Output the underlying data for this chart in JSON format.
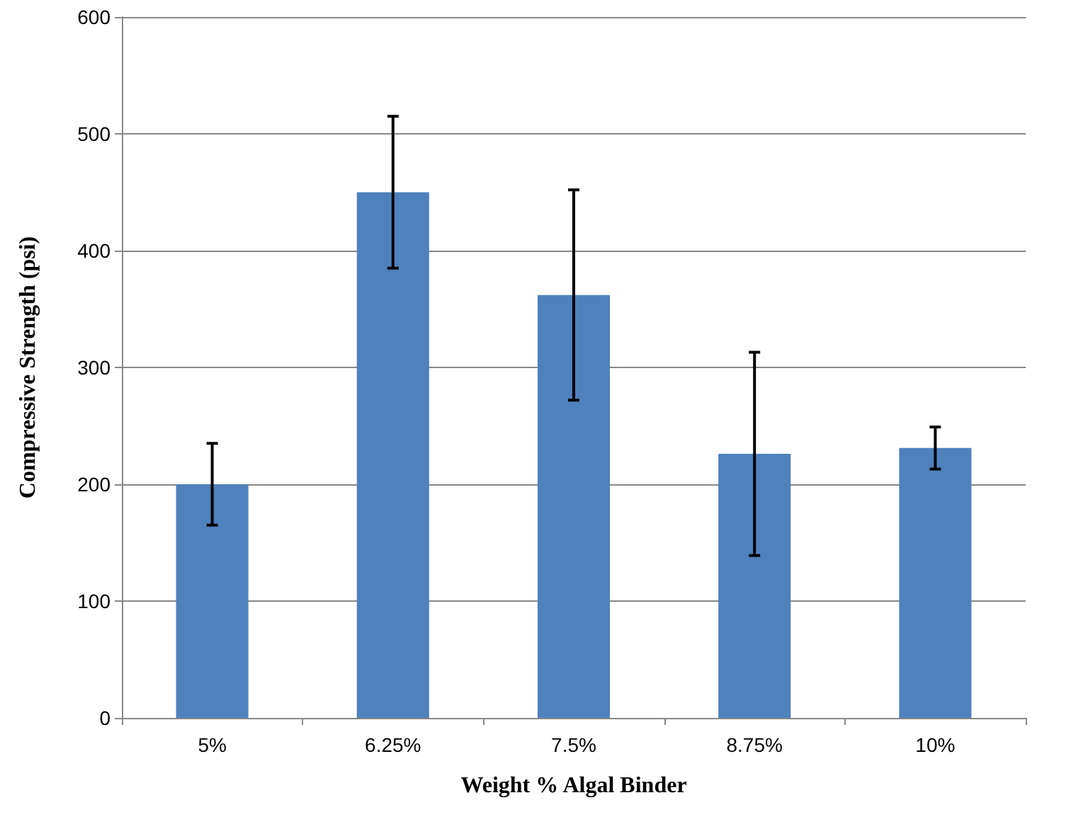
{
  "chart_data": {
    "type": "bar",
    "xlabel": "Weight % Algal Binder",
    "ylabel": "Compressive Strength (psi)",
    "categories": [
      "5%",
      "6.25%",
      "7.5%",
      "8.75%",
      "10%"
    ],
    "values": [
      200,
      450,
      362,
      226,
      231
    ],
    "errors": [
      35,
      65,
      90,
      87,
      18
    ],
    "color": "#4f81bd",
    "ylim": [
      0,
      600
    ],
    "yticks": [
      0,
      100,
      200,
      300,
      400,
      500,
      600
    ],
    "grid": "y"
  }
}
